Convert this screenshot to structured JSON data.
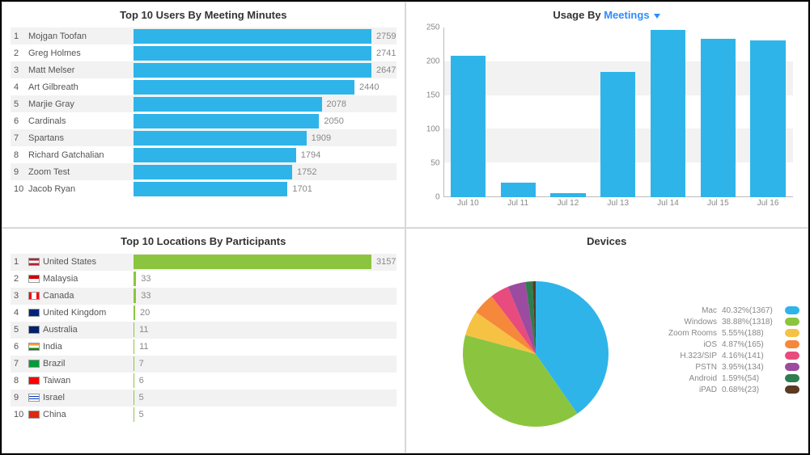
{
  "colors": {
    "blue": "#2fb4e9",
    "green": "#8bc53f",
    "grid": "#f2f2f2",
    "axis": "#bbbbbb",
    "text": "#555555",
    "muted": "#888888",
    "link": "#2d8cff"
  },
  "top_users": {
    "title": "Top 10 Users By Meeting Minutes",
    "bar_color": "#2fb4e9",
    "max": 2900,
    "rows": [
      {
        "rank": 1,
        "name": "Mojgan Toofan",
        "value": 2759
      },
      {
        "rank": 2,
        "name": "Greg Holmes",
        "value": 2741
      },
      {
        "rank": 3,
        "name": "Matt Melser",
        "value": 2647
      },
      {
        "rank": 4,
        "name": "Art Gilbreath",
        "value": 2440
      },
      {
        "rank": 5,
        "name": "Marjie Gray",
        "value": 2078
      },
      {
        "rank": 6,
        "name": "Cardinals",
        "value": 2050
      },
      {
        "rank": 7,
        "name": "Spartans",
        "value": 1909
      },
      {
        "rank": 8,
        "name": "Richard Gatchalian",
        "value": 1794
      },
      {
        "rank": 9,
        "name": "Zoom Test",
        "value": 1752
      },
      {
        "rank": 10,
        "name": "Jacob Ryan",
        "value": 1701
      }
    ]
  },
  "usage_chart": {
    "title_prefix": "Usage By ",
    "dropdown_label": "Meetings",
    "bar_color": "#2fb4e9",
    "ylim": [
      0,
      250
    ],
    "ytick_step": 50,
    "yticks": [
      0,
      50,
      100,
      150,
      200,
      250
    ],
    "grid_bands": [
      1,
      3
    ],
    "categories": [
      "Jul 10",
      "Jul 11",
      "Jul 12",
      "Jul 13",
      "Jul 14",
      "Jul 15",
      "Jul 16"
    ],
    "values": [
      208,
      22,
      6,
      185,
      246,
      233,
      231
    ]
  },
  "top_locations": {
    "title": "Top 10 Locations By Participants",
    "bar_color": "#8bc53f",
    "max": 3300,
    "rows": [
      {
        "rank": 1,
        "name": "United States",
        "value": 3157,
        "flag_bg": "linear-gradient(#b22234 33%, #ffffff 33% 66%, #b22234 66%)"
      },
      {
        "rank": 2,
        "name": "Malaysia",
        "value": 33,
        "flag_bg": "linear-gradient(#cc0001 50%, #ffffff 50%)"
      },
      {
        "rank": 3,
        "name": "Canada",
        "value": 33,
        "flag_bg": "linear-gradient(to right,#ff0000 25%,#ffffff 25% 75%,#ff0000 75%)"
      },
      {
        "rank": 4,
        "name": "United Kingdom",
        "value": 20,
        "flag_bg": "linear-gradient(#00247d,#00247d)"
      },
      {
        "rank": 5,
        "name": "Australia",
        "value": 11,
        "flag_bg": "linear-gradient(#012169,#012169)"
      },
      {
        "rank": 6,
        "name": "India",
        "value": 11,
        "flag_bg": "linear-gradient(#ff9933 33%, #ffffff 33% 66%, #138808 66%)"
      },
      {
        "rank": 7,
        "name": "Brazil",
        "value": 7,
        "flag_bg": "linear-gradient(#009b3a,#009b3a)"
      },
      {
        "rank": 8,
        "name": "Taiwan",
        "value": 6,
        "flag_bg": "linear-gradient(#fe0000,#fe0000)"
      },
      {
        "rank": 9,
        "name": "Israel",
        "value": 5,
        "flag_bg": "linear-gradient(#ffffff 25%, #0038b8 25% 35%, #ffffff 35% 65%, #0038b8 65% 75%, #ffffff 75%)"
      },
      {
        "rank": 10,
        "name": "China",
        "value": 5,
        "flag_bg": "linear-gradient(#de2910,#de2910)"
      }
    ]
  },
  "devices": {
    "title": "Devices",
    "items": [
      {
        "name": "Mac",
        "pct": 40.32,
        "count": 1367,
        "color": "#2fb4e9"
      },
      {
        "name": "Windows",
        "pct": 38.88,
        "count": 1318,
        "color": "#8bc53f"
      },
      {
        "name": "Zoom Rooms",
        "pct": 5.55,
        "count": 188,
        "color": "#f6c244"
      },
      {
        "name": "iOS",
        "pct": 4.87,
        "count": 165,
        "color": "#f6883b"
      },
      {
        "name": "H.323/SIP",
        "pct": 4.16,
        "count": 141,
        "color": "#e84b7d"
      },
      {
        "name": "PSTN",
        "pct": 3.95,
        "count": 134,
        "color": "#9b4ba0"
      },
      {
        "name": "Android",
        "pct": 1.59,
        "count": 54,
        "color": "#2e7d4f"
      },
      {
        "name": "iPAD",
        "pct": 0.68,
        "count": 23,
        "color": "#5a3a22"
      }
    ],
    "pie_radius": 90
  }
}
